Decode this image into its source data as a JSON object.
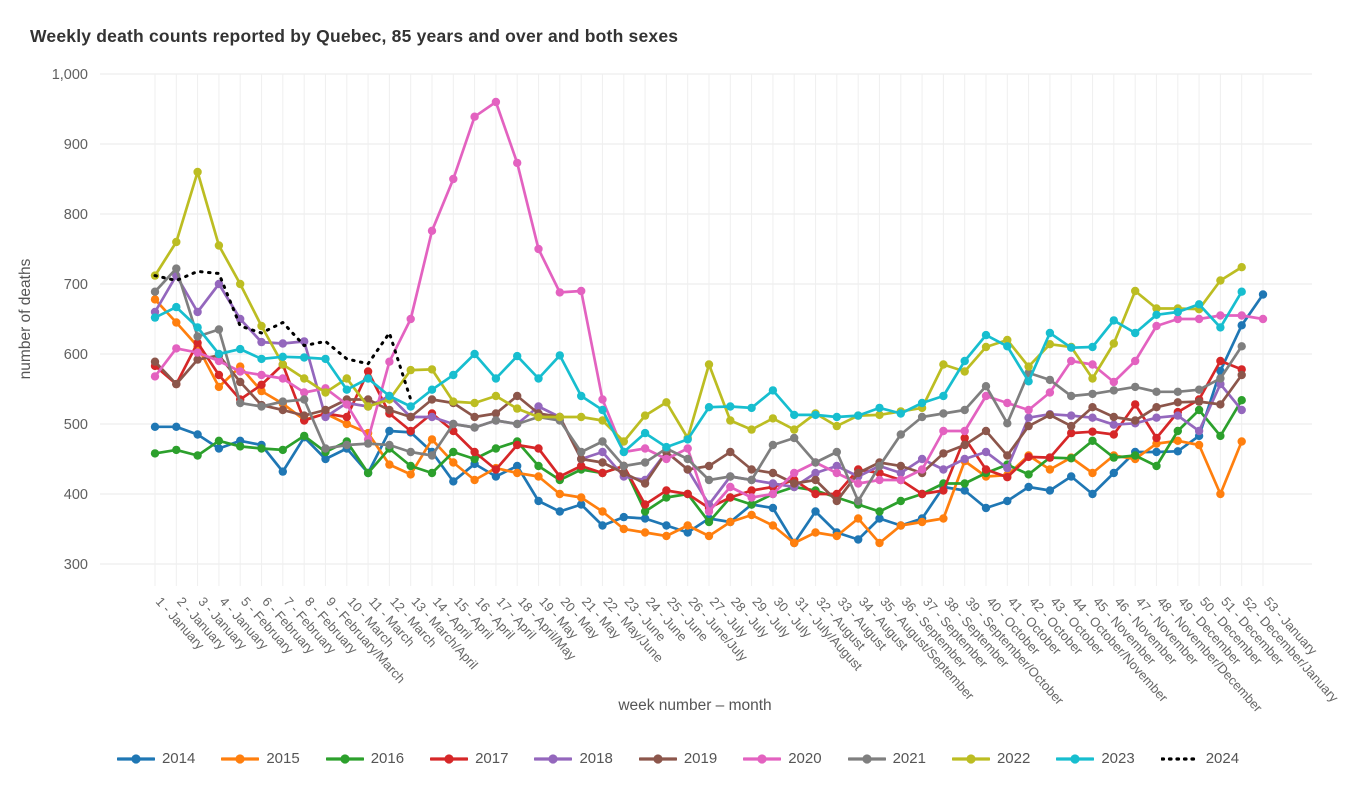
{
  "title": "Weekly death counts reported by Quebec, 85 years and over and both sexes",
  "y_axis": {
    "label": "number of deaths",
    "ticks": [
      {
        "value": 300,
        "label": "300"
      },
      {
        "value": 400,
        "label": "400"
      },
      {
        "value": 500,
        "label": "500"
      },
      {
        "value": 600,
        "label": "600"
      },
      {
        "value": 700,
        "label": "700"
      },
      {
        "value": 800,
        "label": "800"
      },
      {
        "value": 900,
        "label": "900"
      },
      {
        "value": 1000,
        "label": "1,000"
      }
    ],
    "range": [
      300,
      1000
    ]
  },
  "x_axis": {
    "label": "week number – month",
    "week_labels": [
      "1 - January",
      "2 - January",
      "3 - January",
      "4 - January",
      "5 - February",
      "6 - February",
      "7 - February",
      "8 - February",
      "9 - February/March",
      "10 - March",
      "11 - March",
      "12 - March",
      "13 - March/April",
      "14 - April",
      "15 - April",
      "16 - April",
      "17 - April",
      "18 - April/May",
      "19 - May",
      "20 - May",
      "21 - May",
      "22 - May/June",
      "23 - June",
      "24 - June",
      "25 - June",
      "26 - June/July",
      "27 - July",
      "28 - July",
      "29 - July",
      "30 - July",
      "31 - July/August",
      "32 - August",
      "33 - August",
      "34 - August",
      "35 - August/September",
      "36 - September",
      "37 - September",
      "38 - September",
      "39 - September/October",
      "40 - October",
      "41 - October",
      "42 - October",
      "43 - October",
      "44 - October/November",
      "45 - November",
      "46 - November",
      "47 - November",
      "48 - November/December",
      "49 - December",
      "50 - December",
      "51 - December",
      "52 - December/January",
      "53 - January"
    ]
  },
  "grid": {
    "show": true,
    "color": "#e9e9e9"
  },
  "legend": {
    "position": "bottom",
    "years": [
      "2014",
      "2015",
      "2016",
      "2017",
      "2018",
      "2019",
      "2020",
      "2021",
      "2022",
      "2023",
      "2024"
    ]
  },
  "chart_data": {
    "type": "line",
    "x_label": "week number – month",
    "y_label": "number of deaths",
    "ylim": [
      300,
      1000
    ],
    "x": "week numbers 1-53, labels in x_axis.week_labels",
    "series": [
      {
        "name": "2014",
        "color": "#1f77b4",
        "dashed": false,
        "values": [
          496,
          496,
          485,
          465,
          476,
          470,
          432,
          481,
          450,
          465,
          430,
          490,
          488,
          460,
          418,
          443,
          425,
          440,
          390,
          375,
          385,
          355,
          367,
          365,
          355,
          345,
          365,
          360,
          385,
          380,
          330,
          375,
          345,
          335,
          365,
          355,
          365,
          410,
          405,
          380,
          390,
          410,
          405,
          425,
          400,
          430,
          460,
          460,
          461,
          483,
          576,
          641,
          685
        ]
      },
      {
        "name": "2015",
        "color": "#ff7f0e",
        "dashed": false,
        "values": [
          678,
          645,
          611,
          553,
          582,
          547,
          529,
          506,
          515,
          500,
          487,
          442,
          428,
          478,
          445,
          420,
          437,
          430,
          425,
          400,
          395,
          375,
          350,
          345,
          340,
          355,
          340,
          360,
          370,
          355,
          330,
          345,
          340,
          365,
          330,
          355,
          360,
          365,
          447,
          425,
          427,
          455,
          435,
          452,
          430,
          455,
          450,
          472,
          476,
          470,
          400,
          475
        ]
      },
      {
        "name": "2016",
        "color": "#2ca02c",
        "dashed": false,
        "values": [
          458,
          463,
          455,
          476,
          468,
          465,
          463,
          483,
          460,
          475,
          430,
          465,
          440,
          430,
          460,
          450,
          465,
          475,
          440,
          420,
          435,
          430,
          440,
          375,
          395,
          400,
          360,
          395,
          385,
          400,
          410,
          405,
          395,
          385,
          375,
          390,
          400,
          415,
          415,
          430,
          442,
          428,
          452,
          451,
          476,
          452,
          455,
          440,
          490,
          520,
          483,
          534
        ]
      },
      {
        "name": "2017",
        "color": "#d62728",
        "dashed": false,
        "values": [
          583,
          557,
          616,
          570,
          535,
          556,
          585,
          505,
          515,
          510,
          575,
          515,
          490,
          515,
          490,
          460,
          435,
          470,
          465,
          425,
          440,
          430,
          440,
          385,
          405,
          400,
          380,
          395,
          405,
          410,
          420,
          400,
          400,
          435,
          430,
          420,
          400,
          405,
          480,
          435,
          424,
          453,
          452,
          487,
          489,
          485,
          528,
          480,
          517,
          535,
          590,
          578
        ]
      },
      {
        "name": "2018",
        "color": "#9467bd",
        "dashed": false,
        "values": [
          660,
          712,
          660,
          700,
          650,
          617,
          615,
          618,
          510,
          530,
          525,
          540,
          510,
          510,
          500,
          495,
          505,
          500,
          525,
          510,
          450,
          460,
          425,
          420,
          460,
          435,
          385,
          425,
          420,
          415,
          410,
          430,
          440,
          425,
          440,
          430,
          450,
          435,
          450,
          460,
          437,
          509,
          514,
          512,
          509,
          499,
          501,
          509,
          512,
          490,
          557,
          520
        ]
      },
      {
        "name": "2019",
        "color": "#8c564b",
        "dashed": false,
        "values": [
          589,
          557,
          592,
          598,
          560,
          527,
          520,
          512,
          520,
          535,
          535,
          520,
          510,
          535,
          530,
          510,
          515,
          540,
          515,
          510,
          450,
          445,
          430,
          415,
          460,
          435,
          440,
          460,
          435,
          430,
          415,
          420,
          390,
          430,
          445,
          440,
          430,
          458,
          470,
          490,
          455,
          497,
          513,
          497,
          524,
          510,
          505,
          524,
          531,
          532,
          528,
          570
        ]
      },
      {
        "name": "2020",
        "color": "#e362c0",
        "dashed": false,
        "values": [
          568,
          608,
          602,
          590,
          575,
          570,
          565,
          545,
          551,
          528,
          478,
          589,
          650,
          776,
          850,
          939,
          960,
          873,
          750,
          688,
          690,
          535,
          460,
          465,
          450,
          465,
          375,
          410,
          395,
          400,
          430,
          445,
          430,
          415,
          420,
          420,
          435,
          490,
          490,
          540,
          530,
          520,
          545,
          590,
          585,
          560,
          590,
          640,
          650,
          650,
          655,
          655,
          650
        ]
      },
      {
        "name": "2021",
        "color": "#7f7f7f",
        "dashed": false,
        "values": [
          689,
          722,
          625,
          635,
          530,
          525,
          532,
          535,
          465,
          470,
          472,
          470,
          460,
          455,
          500,
          495,
          505,
          500,
          510,
          505,
          460,
          475,
          440,
          445,
          465,
          450,
          420,
          425,
          420,
          470,
          480,
          445,
          460,
          390,
          440,
          485,
          510,
          515,
          520,
          554,
          501,
          573,
          563,
          540,
          543,
          548,
          553,
          546,
          546,
          549,
          565,
          611
        ]
      },
      {
        "name": "2022",
        "color": "#bcbd22",
        "dashed": false,
        "values": [
          712,
          760,
          860,
          755,
          700,
          640,
          585,
          565,
          545,
          565,
          525,
          535,
          577,
          578,
          532,
          530,
          540,
          522,
          510,
          510,
          510,
          505,
          475,
          512,
          531,
          480,
          585,
          505,
          492,
          508,
          492,
          515,
          497,
          512,
          513,
          518,
          523,
          585,
          575,
          610,
          620,
          582,
          614,
          610,
          565,
          615,
          690,
          665,
          665,
          664,
          705,
          724
        ]
      },
      {
        "name": "2023",
        "color": "#17becf",
        "dashed": false,
        "values": [
          652,
          667,
          638,
          600,
          607,
          593,
          596,
          595,
          593,
          549,
          565,
          540,
          525,
          549,
          570,
          600,
          565,
          597,
          565,
          598,
          540,
          520,
          460,
          487,
          467,
          478,
          524,
          525,
          523,
          548,
          513,
          513,
          510,
          512,
          523,
          515,
          530,
          540,
          590,
          627,
          611,
          561,
          630,
          609,
          610,
          648,
          630,
          656,
          660,
          671,
          638,
          689
        ]
      },
      {
        "name": "2024",
        "color": "#000000",
        "dashed": true,
        "values": [
          712,
          705,
          718,
          715,
          640,
          630,
          645,
          612,
          618,
          593,
          586,
          630,
          535
        ]
      }
    ]
  }
}
